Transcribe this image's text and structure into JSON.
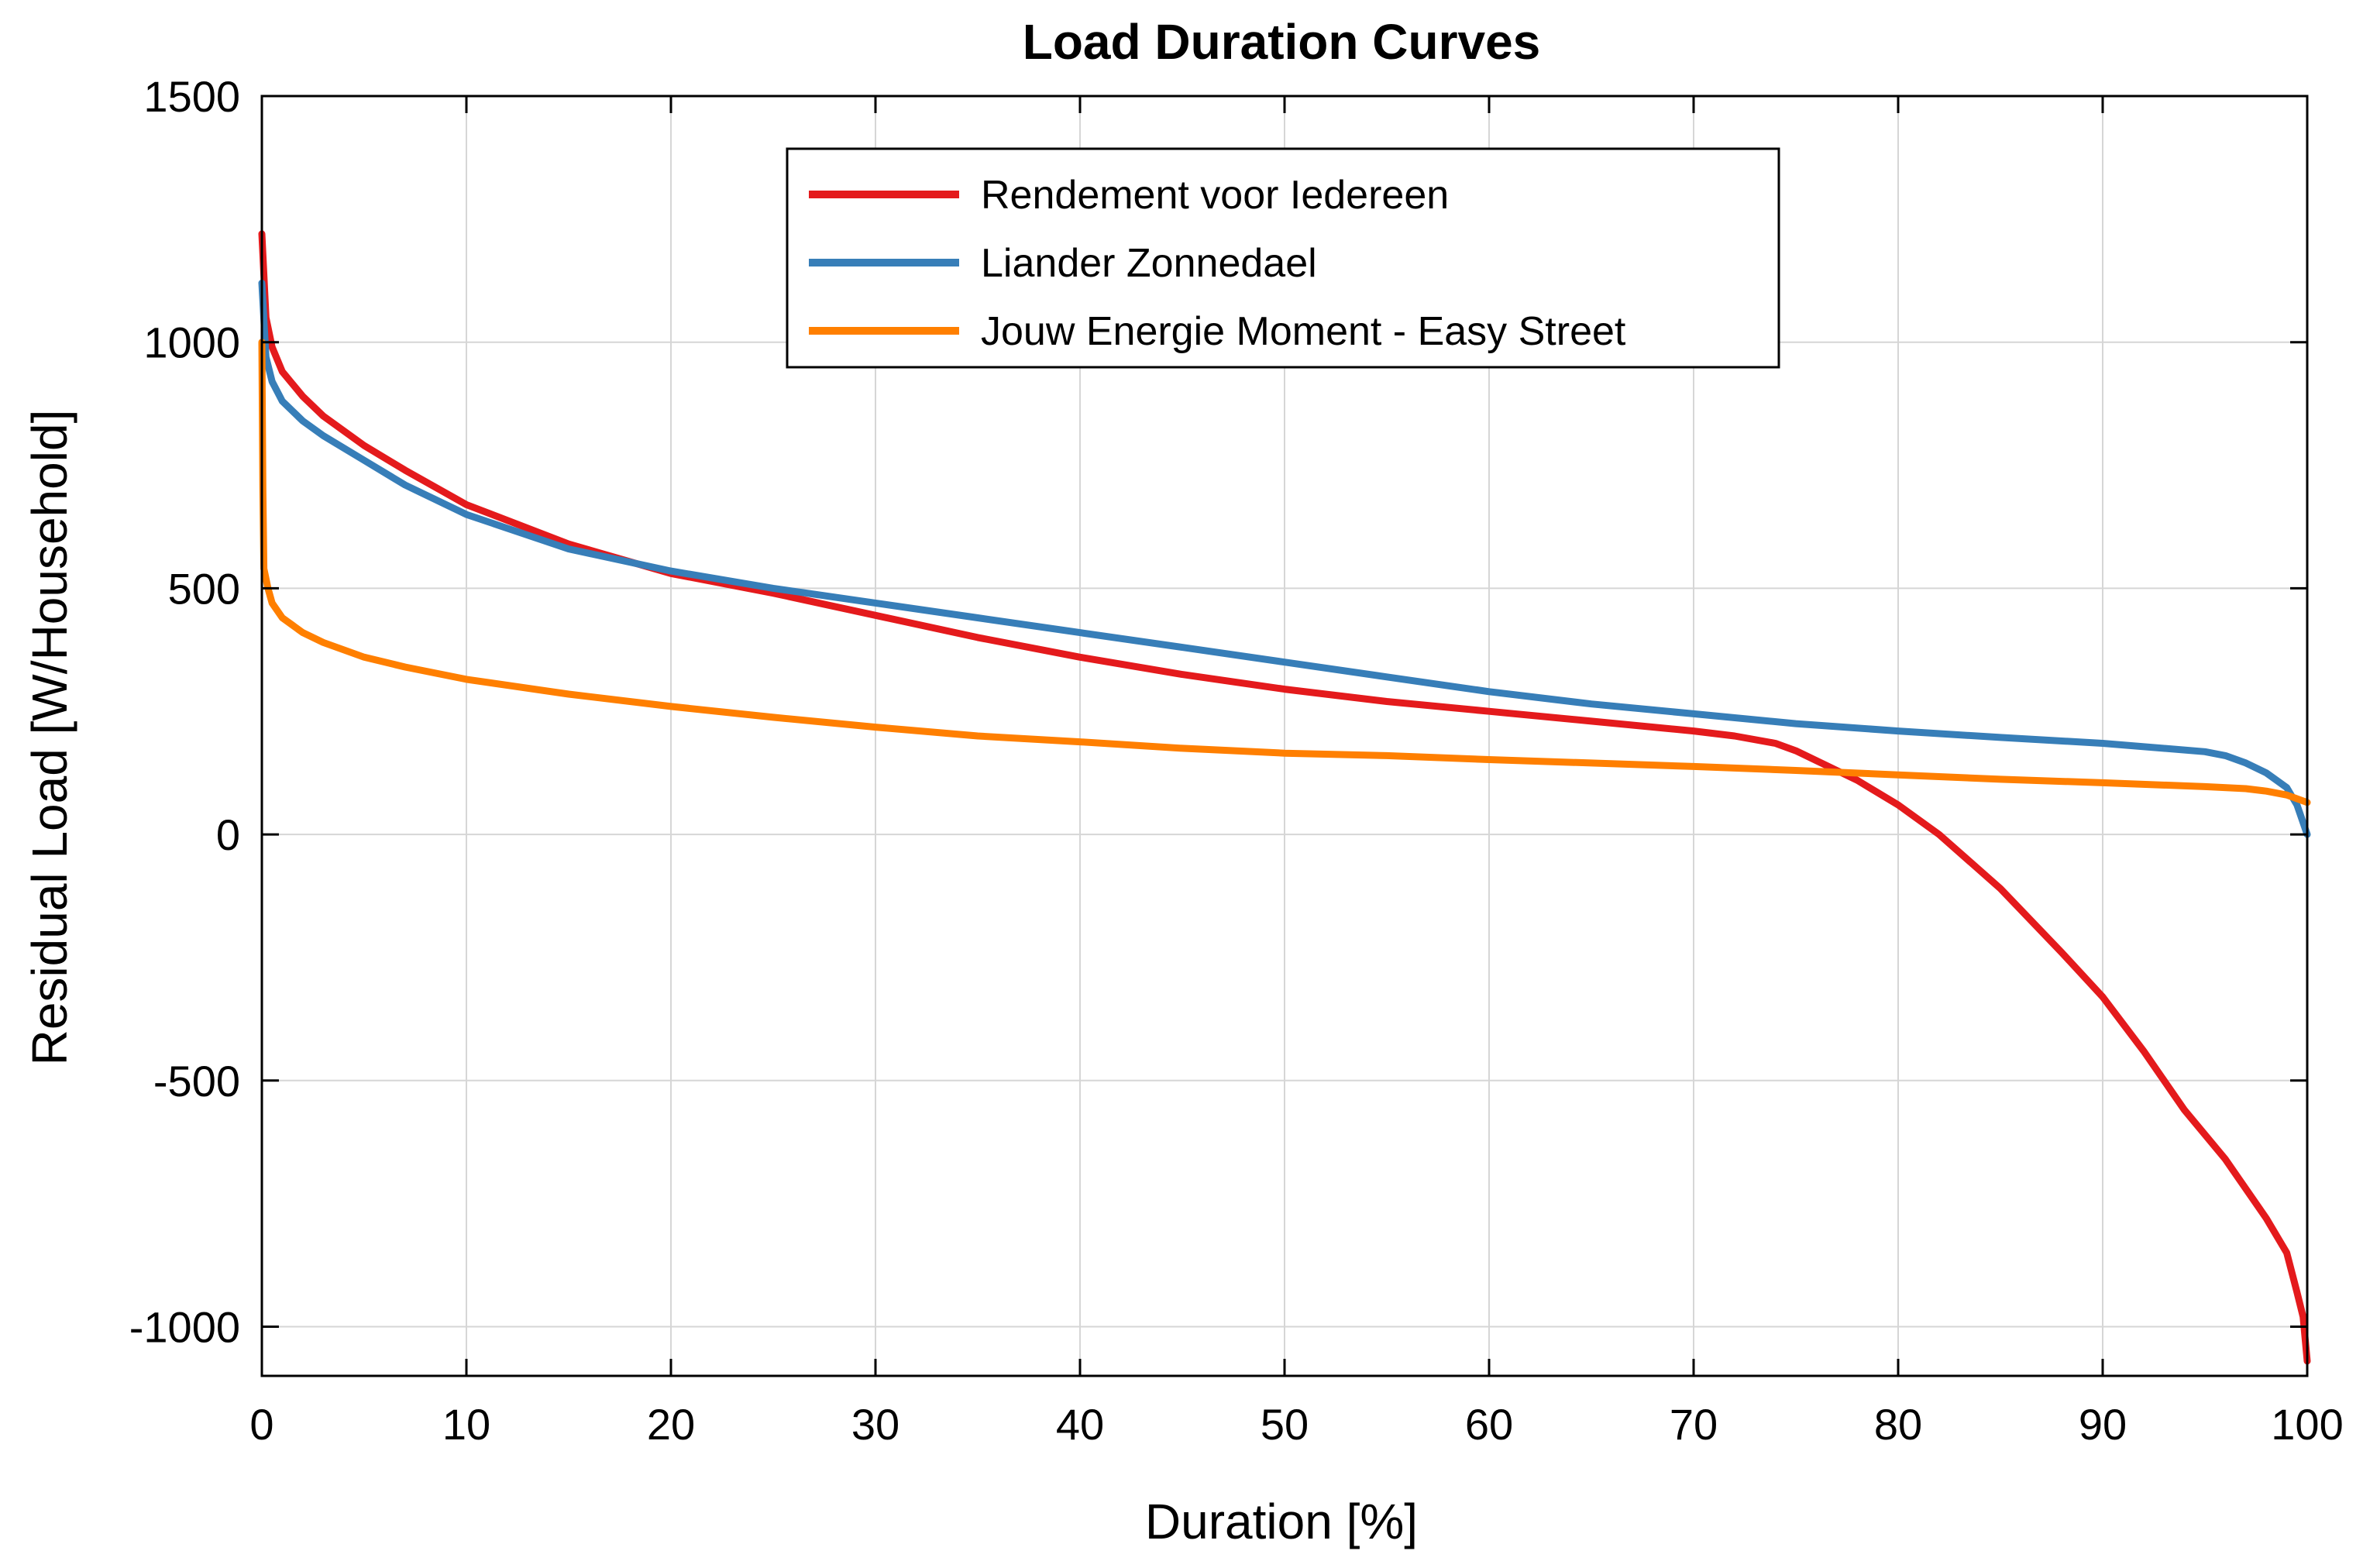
{
  "chart_data": {
    "type": "line",
    "title": "Load Duration Curves",
    "xlabel": "Duration [%]",
    "ylabel": "Residual Load [W/Household]",
    "xlim": [
      0,
      100
    ],
    "ylim": [
      -1100,
      1500
    ],
    "xticks": [
      0,
      10,
      20,
      30,
      40,
      50,
      60,
      70,
      80,
      90,
      100
    ],
    "yticks": [
      -1000,
      -500,
      0,
      500,
      1000,
      1500
    ],
    "xtick_labels": [
      "0",
      "10",
      "20",
      "30",
      "40",
      "50",
      "60",
      "70",
      "80",
      "90",
      "100"
    ],
    "ytick_labels": [
      "-1000",
      "-500",
      "0",
      "500",
      "1000",
      "1500"
    ],
    "grid": true,
    "legend_position": "top-center",
    "series": [
      {
        "name": "Rendement voor Iedereen",
        "color": "#e41a1c",
        "x": [
          0,
          0.2,
          0.5,
          1,
          2,
          3,
          5,
          7,
          10,
          15,
          20,
          25,
          30,
          35,
          40,
          45,
          50,
          55,
          60,
          65,
          70,
          72,
          74,
          75,
          76,
          77,
          78,
          80,
          82,
          85,
          88,
          90,
          92,
          94,
          96,
          97,
          98,
          99,
          99.5,
          99.8,
          100
        ],
        "y": [
          1220,
          1050,
          990,
          940,
          890,
          850,
          790,
          740,
          670,
          590,
          530,
          490,
          445,
          400,
          360,
          325,
          295,
          270,
          250,
          230,
          210,
          200,
          185,
          170,
          150,
          130,
          110,
          60,
          0,
          -110,
          -240,
          -330,
          -440,
          -560,
          -660,
          -720,
          -780,
          -850,
          -930,
          -980,
          -1070
        ]
      },
      {
        "name": "Liander Zonnedael",
        "color": "#377eb8",
        "x": [
          0,
          0.2,
          0.5,
          1,
          2,
          3,
          5,
          7,
          10,
          15,
          20,
          25,
          30,
          35,
          40,
          45,
          50,
          55,
          60,
          65,
          70,
          75,
          80,
          85,
          90,
          95,
          96,
          97,
          98,
          99,
          99.5,
          100
        ],
        "y": [
          1120,
          970,
          920,
          880,
          840,
          810,
          760,
          710,
          650,
          580,
          535,
          500,
          470,
          440,
          410,
          380,
          350,
          320,
          290,
          265,
          245,
          225,
          210,
          197,
          185,
          168,
          160,
          145,
          125,
          95,
          60,
          0
        ]
      },
      {
        "name": "Jouw Energie Moment - Easy Street",
        "color": "#ff7f00",
        "x": [
          0,
          0.05,
          0.1,
          0.3,
          0.5,
          1,
          2,
          3,
          5,
          7,
          10,
          15,
          20,
          25,
          30,
          35,
          40,
          45,
          50,
          55,
          60,
          65,
          70,
          75,
          80,
          85,
          90,
          95,
          97,
          98,
          99,
          100
        ],
        "y": [
          1000,
          700,
          540,
          500,
          470,
          440,
          410,
          390,
          360,
          340,
          315,
          285,
          260,
          238,
          218,
          200,
          188,
          175,
          165,
          160,
          152,
          145,
          138,
          130,
          121,
          112,
          105,
          97,
          93,
          88,
          80,
          65
        ]
      }
    ]
  }
}
